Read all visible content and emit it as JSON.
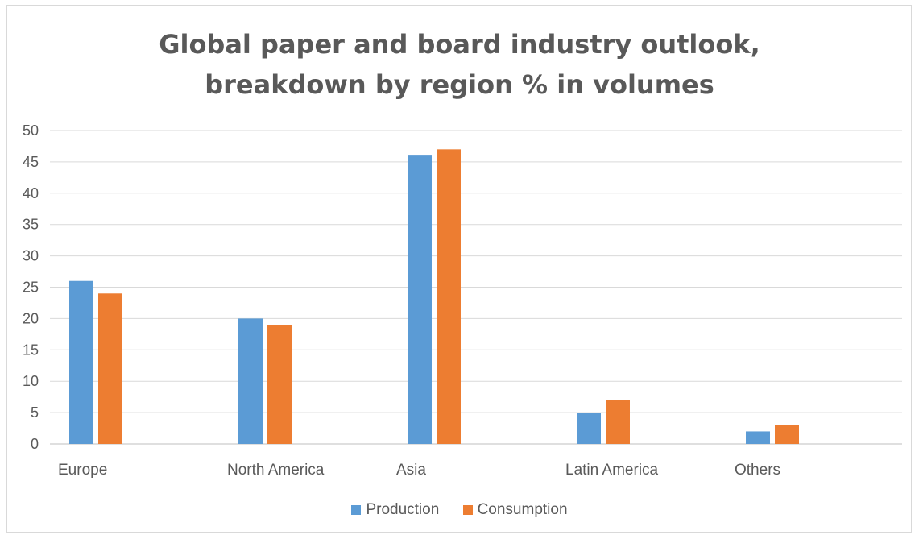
{
  "chart_data": {
    "type": "bar",
    "title_lines": [
      "Global paper and board industry outlook,",
      "breakdown by region % in volumes"
    ],
    "categories": [
      "Europe",
      "North America",
      "Asia",
      "Latin America",
      "Others"
    ],
    "series": [
      {
        "name": "Production",
        "color": "#5b9bd5",
        "values": [
          26,
          20,
          46,
          5,
          2
        ]
      },
      {
        "name": "Consumption",
        "color": "#ed7d31",
        "values": [
          24,
          19,
          47,
          7,
          3
        ]
      }
    ],
    "ylim": [
      0,
      50
    ],
    "yticks": [
      0,
      5,
      10,
      15,
      20,
      25,
      30,
      35,
      40,
      45,
      50
    ],
    "grid": true,
    "legend_position": "bottom",
    "xlabel": "",
    "ylabel": ""
  }
}
